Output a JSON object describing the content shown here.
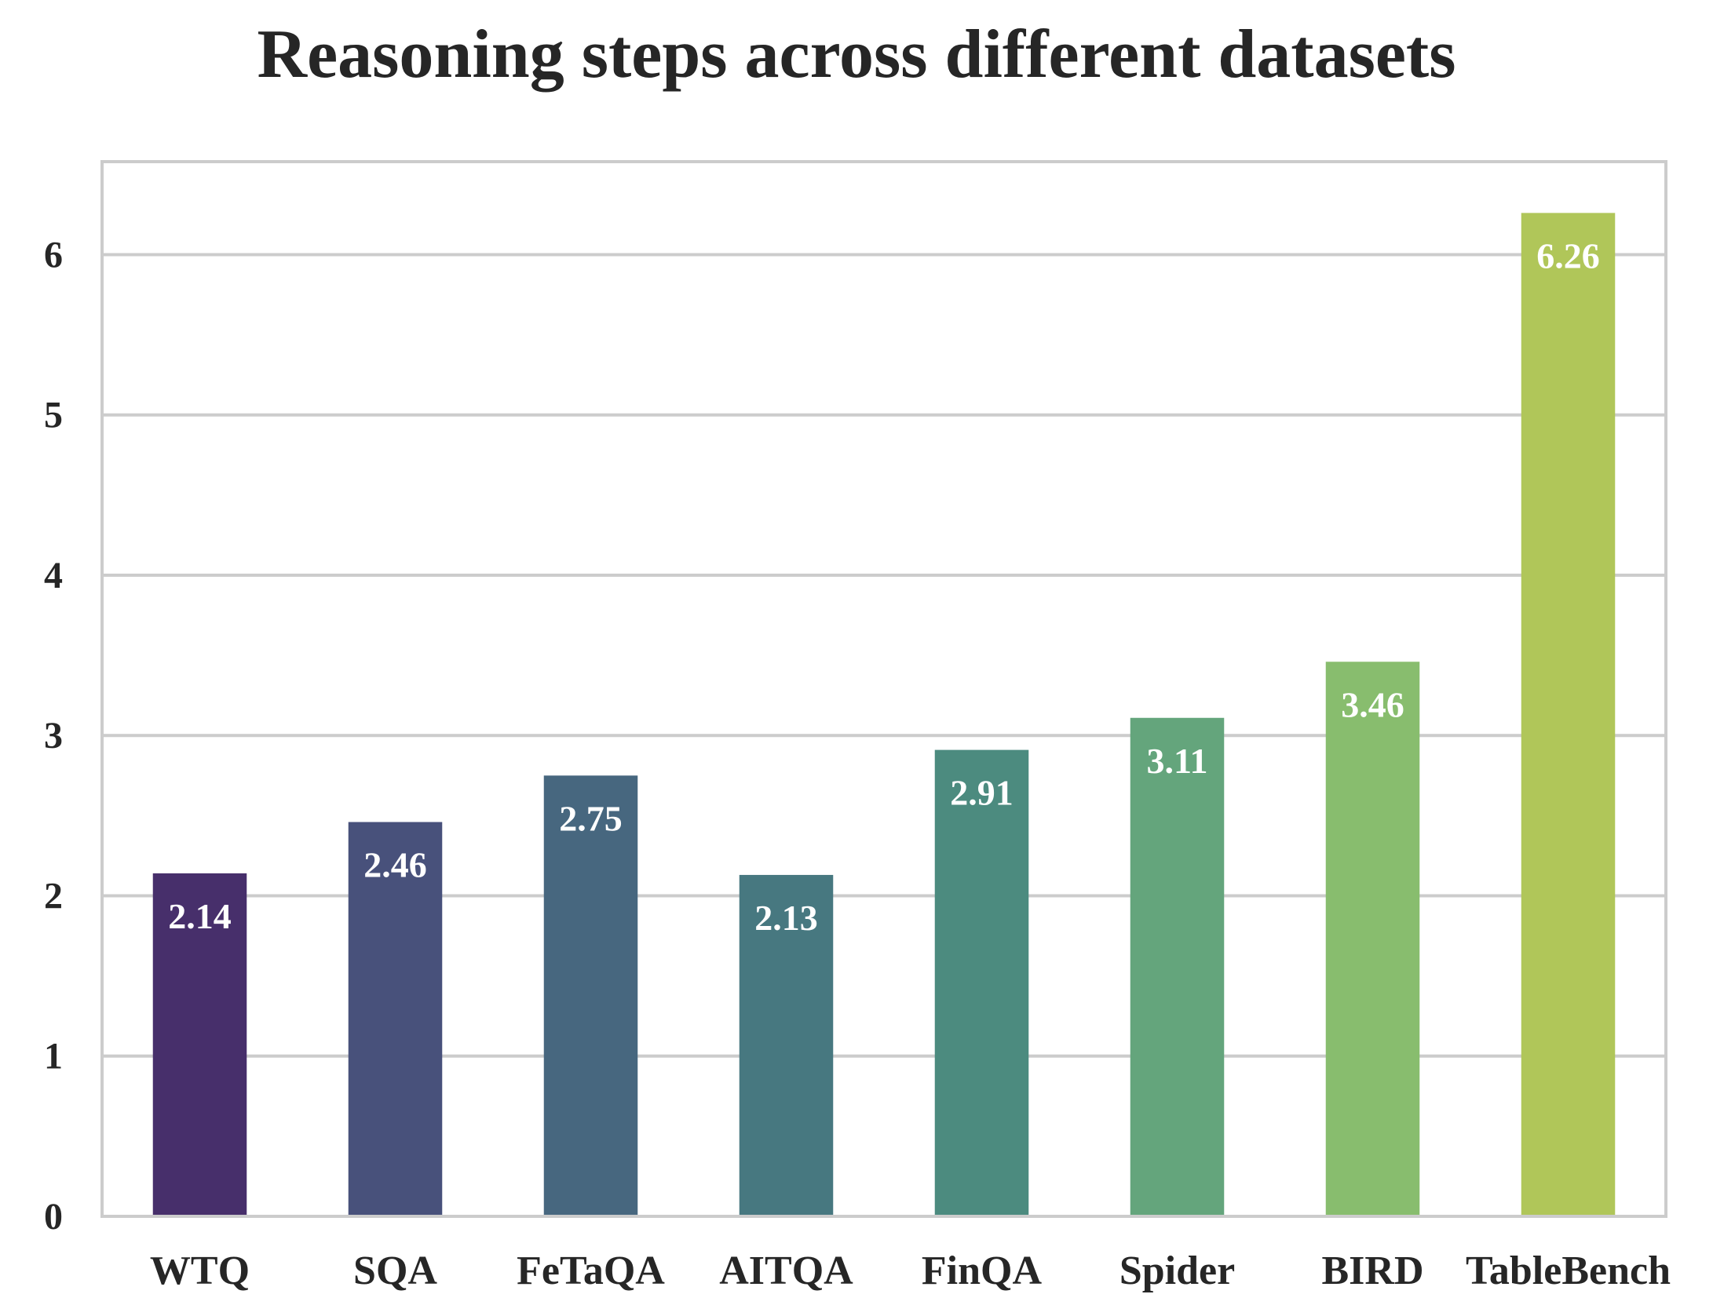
{
  "chart_data": {
    "type": "bar",
    "title": "Reasoning steps across different datasets",
    "xlabel": "",
    "ylabel": "",
    "categories": [
      "WTQ",
      "SQA",
      "FeTaQA",
      "AITQA",
      "FinQA",
      "Spider",
      "BIRD",
      "TableBench"
    ],
    "values": [
      2.14,
      2.46,
      2.75,
      2.13,
      2.91,
      3.11,
      3.46,
      6.26
    ],
    "data_labels": [
      "2.14",
      "2.46",
      "2.75",
      "2.13",
      "2.91",
      "3.11",
      "3.46",
      "6.26"
    ],
    "yticks": [
      "0",
      "1",
      "2",
      "3",
      "4",
      "5",
      "6"
    ],
    "ylim": [
      0,
      6.58
    ],
    "grid": true,
    "grid_axis": "y",
    "legend": "none",
    "colors": [
      "#472f6b",
      "#48517b",
      "#47677f",
      "#477880",
      "#4c8b7f",
      "#64a57c",
      "#88bd6e",
      "#b0c659"
    ],
    "label_color": "#ffffff",
    "text_color": "#262626",
    "grid_color": "#cccccc",
    "frame_color": "#cccccc"
  }
}
